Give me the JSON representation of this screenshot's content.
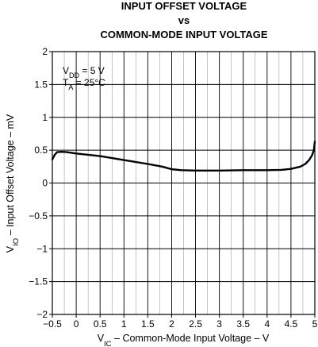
{
  "chart_data": {
    "type": "line",
    "title_lines": [
      "INPUT OFFSET VOLTAGE",
      "vs",
      "COMMON-MODE INPUT VOLTAGE"
    ],
    "xlabel": {
      "prefix": "V",
      "sub": "IC",
      "suffix": " – Common-Mode Input Voltage – V"
    },
    "ylabel": {
      "prefix": "V",
      "sub": "IO",
      "suffix": " – Input Offset Voltage – mV"
    },
    "xlim": [
      -0.5,
      5
    ],
    "ylim": [
      -2,
      2
    ],
    "x_ticks": [
      -0.5,
      0,
      0.5,
      1,
      1.5,
      2,
      2.5,
      3,
      3.5,
      4,
      4.5,
      5
    ],
    "x_tick_labels": [
      "−0.5",
      "0",
      "0.5",
      "1",
      "1.5",
      "2",
      "2.5",
      "3",
      "3.5",
      "4",
      "4.5",
      "5"
    ],
    "y_ticks": [
      -2,
      -1.5,
      -1,
      -0.5,
      0,
      0.5,
      1,
      1.5,
      2
    ],
    "y_tick_labels": [
      "−2",
      "−1.5",
      "−1",
      "−0.5",
      "0",
      "0.5",
      "1",
      "1.5",
      "2"
    ],
    "minor_x_step": 0.25,
    "grid": true,
    "annotations": [
      {
        "prefix": "V",
        "sub": "DD",
        "suffix": " = 5 V"
      },
      {
        "prefix": "T",
        "sub": "A",
        "suffix": " = 25°C"
      }
    ],
    "series": [
      {
        "x": [
          -0.5,
          -0.45,
          -0.4,
          -0.3,
          -0.2,
          0,
          0.5,
          1,
          1.5,
          1.8,
          2,
          2.2,
          2.5,
          3,
          3.5,
          4,
          4.3,
          4.5,
          4.7,
          4.8,
          4.88,
          4.94,
          4.98,
          5
        ],
        "y": [
          0.36,
          0.43,
          0.47,
          0.475,
          0.47,
          0.45,
          0.41,
          0.35,
          0.29,
          0.25,
          0.21,
          0.195,
          0.19,
          0.19,
          0.195,
          0.195,
          0.2,
          0.215,
          0.25,
          0.29,
          0.35,
          0.42,
          0.5,
          0.63
        ]
      }
    ]
  }
}
